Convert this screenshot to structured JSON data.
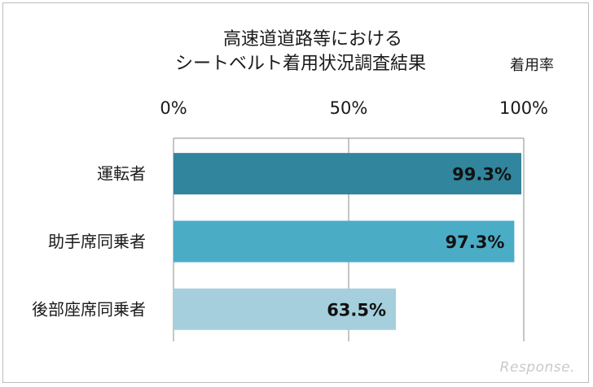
{
  "title_line1": "高速道道路等における",
  "title_line2": "シートベルト着用状況調査結果",
  "unit_label": "着用率",
  "watermark": "Response.",
  "chart_data": {
    "type": "bar",
    "orientation": "horizontal",
    "title": "高速道道路等における シートベルト着用状況調査結果",
    "categories": [
      "運転者",
      "助手席同乗者",
      "後部座席同乗者"
    ],
    "values": [
      99.3,
      97.3,
      63.5
    ],
    "value_labels": [
      "99.3%",
      "97.3%",
      "63.5%"
    ],
    "colors": [
      "#31859c",
      "#4bacc6",
      "#a5cfdc"
    ],
    "xlim": [
      0,
      100
    ],
    "xticks": [
      0,
      50,
      100
    ],
    "xtick_labels": [
      "0%",
      "50%",
      "100%"
    ],
    "tick_position": "top",
    "grid": true
  }
}
